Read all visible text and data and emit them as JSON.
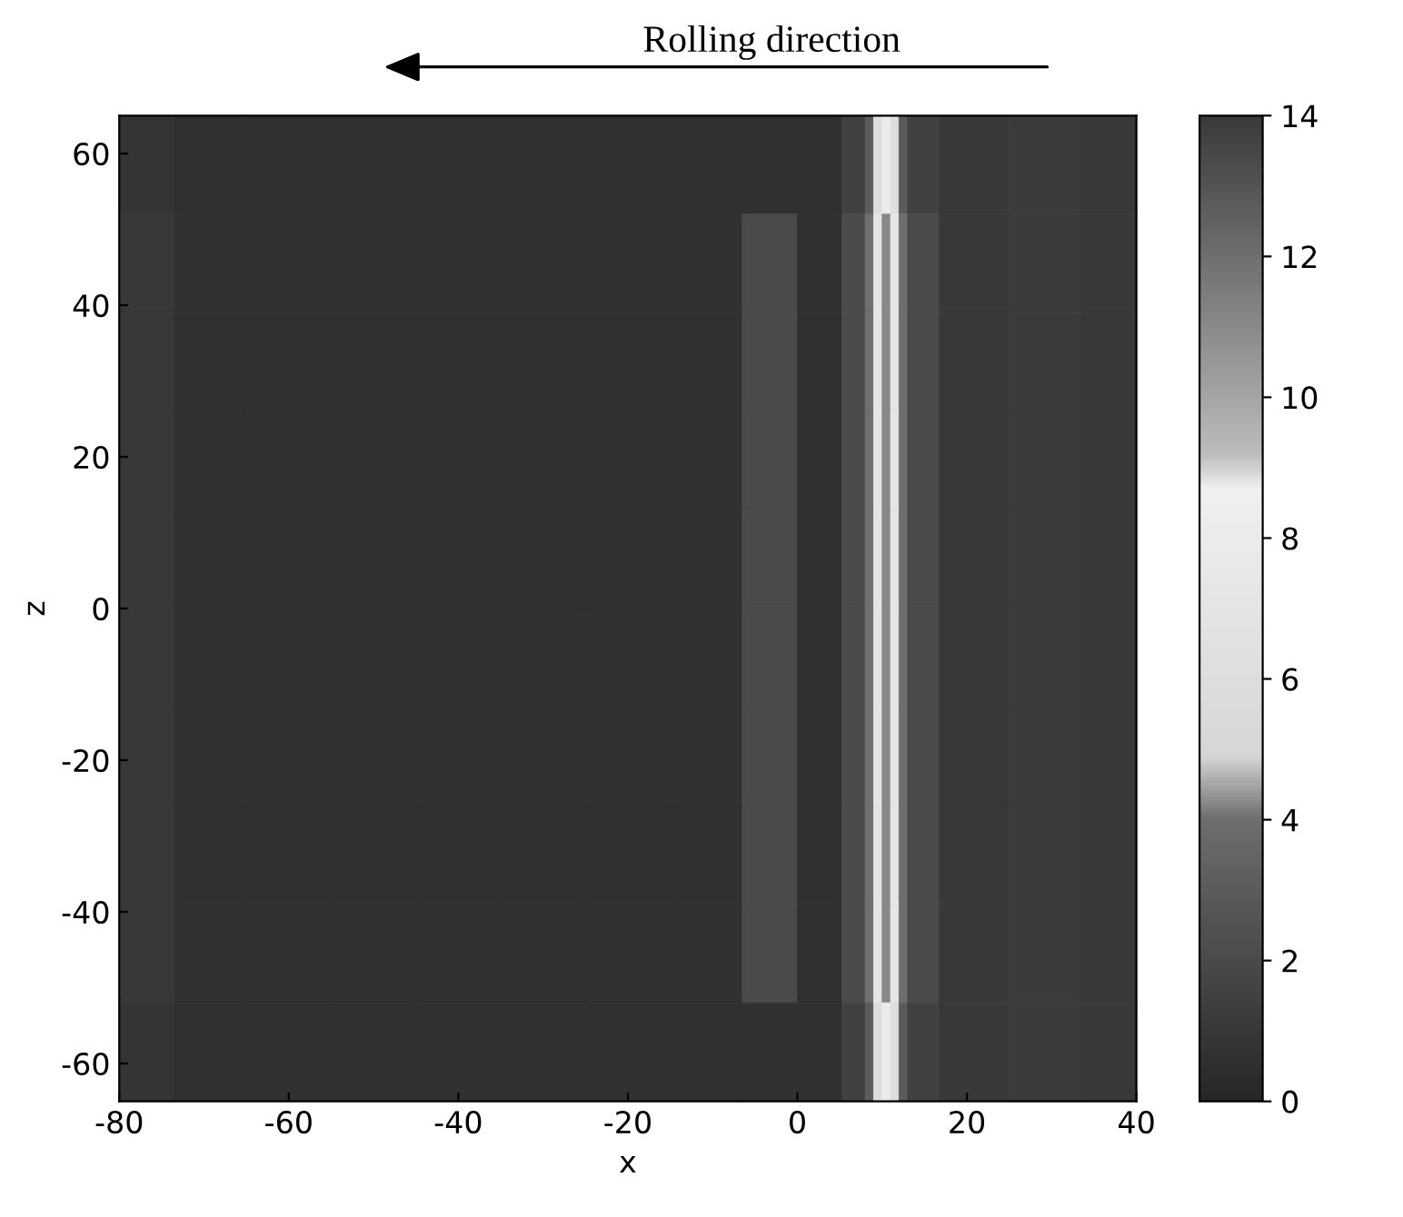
{
  "chart_data": {
    "type": "heatmap",
    "xlabel": "x",
    "ylabel": "z",
    "annotations": [
      "Rolling direction"
    ],
    "x": [
      -77,
      -70,
      -60,
      -50,
      -40,
      -30,
      -20,
      -10,
      -3,
      3,
      7.5,
      8.5,
      9.5,
      10.5,
      11.5,
      12.5,
      13.5,
      20,
      30,
      37
    ],
    "cells": [
      [
        0.8,
        0.6,
        0.6,
        0.6,
        0.6,
        0.6,
        0.6,
        0.6,
        0.6,
        0.6,
        1.5,
        3,
        6,
        8,
        6,
        3,
        1.5,
        1,
        1.2,
        1
      ],
      [
        1,
        0.6,
        0.6,
        0.6,
        0.6,
        0.6,
        0.6,
        0.6,
        2,
        0.6,
        2,
        4,
        7,
        11,
        7,
        4,
        2,
        1,
        1.2,
        1
      ],
      [
        1,
        0.6,
        0.6,
        0.6,
        0.6,
        0.6,
        0.6,
        0.6,
        2,
        0.6,
        2,
        4,
        7,
        11,
        7,
        4,
        2,
        1,
        1.2,
        1
      ],
      [
        1,
        0.6,
        0.6,
        0.6,
        0.6,
        0.6,
        0.6,
        0.6,
        2,
        0.6,
        2,
        4,
        7,
        11,
        7,
        4,
        2,
        1,
        1.2,
        1
      ],
      [
        1,
        0.6,
        0.6,
        0.6,
        0.6,
        0.6,
        0.6,
        0.6,
        2,
        0.6,
        2,
        4,
        7,
        11,
        7,
        4,
        2,
        1,
        1.2,
        1
      ],
      [
        1,
        0.6,
        0.6,
        0.6,
        0.6,
        0.6,
        0.6,
        0.6,
        2,
        0.6,
        2,
        4,
        7,
        11,
        7,
        4,
        2,
        1,
        1.2,
        1
      ],
      [
        1,
        0.6,
        0.6,
        0.6,
        0.6,
        0.6,
        0.6,
        0.6,
        2,
        0.6,
        2,
        4,
        7,
        11,
        7,
        4,
        2,
        1,
        1.2,
        1
      ],
      [
        1,
        0.6,
        0.6,
        0.6,
        0.6,
        0.6,
        0.6,
        0.6,
        2,
        0.6,
        2,
        4,
        7,
        11,
        7,
        4,
        2,
        1,
        1.2,
        1
      ],
      [
        1,
        0.6,
        0.6,
        0.6,
        0.6,
        0.6,
        0.6,
        0.6,
        2,
        0.6,
        2,
        4,
        7,
        11,
        7,
        4,
        2,
        1,
        1.2,
        1
      ],
      [
        0.8,
        0.6,
        0.6,
        0.6,
        0.6,
        0.6,
        0.6,
        0.6,
        0.6,
        0.6,
        1.5,
        3,
        6,
        8,
        6,
        3,
        1.5,
        1,
        1.2,
        1
      ]
    ],
    "xlim": [
      -80,
      40
    ],
    "xticks": [
      -80,
      -60,
      -40,
      -20,
      0,
      20,
      40
    ],
    "ylim": [
      -65,
      65
    ],
    "yticks": [
      -60,
      -40,
      -20,
      0,
      20,
      40,
      60
    ],
    "clim": [
      0,
      14
    ],
    "cticks": [
      0,
      2,
      4,
      6,
      8,
      10,
      12,
      14
    ]
  }
}
